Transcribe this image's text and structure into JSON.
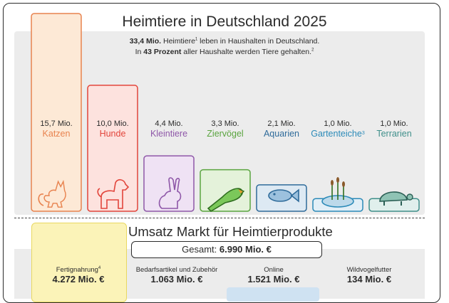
{
  "title": "Heimtiere in Deutschland 2025",
  "subtitle1_value": "33,4 Mio.",
  "subtitle1_text": " Heimtiere",
  "subtitle1_sup": "1",
  "subtitle1_rest": " leben in Haushalten in Deutschland.",
  "subtitle2_pre": "In ",
  "subtitle2_value": "43 Prozent",
  "subtitle2_rest": " aller Haushalte werden Tiere gehalten.",
  "subtitle2_sup": "2",
  "chart_data": {
    "type": "bar",
    "title": "Heimtiere in Deutschland 2025",
    "unit": "Mio.",
    "categories": [
      "Katzen",
      "Hunde",
      "Kleintiere",
      "Ziervögel",
      "Aquarien",
      "Gartenteiche",
      "Terrarien"
    ],
    "category_superscripts": [
      "",
      "",
      "",
      "",
      "",
      "3",
      ""
    ],
    "values": [
      15.7,
      10.0,
      4.4,
      3.3,
      2.1,
      1.0,
      1.0
    ],
    "value_labels": [
      "15,7 Mio.",
      "10,0 Mio.",
      "4,4 Mio.",
      "3,3 Mio.",
      "2,1 Mio.",
      "1,0 Mio.",
      "1,0 Mio."
    ],
    "colors": [
      "#e8834f",
      "#e2453b",
      "#8e57a8",
      "#5aa43f",
      "#2f6b9a",
      "#2b8ab8",
      "#3f8f8a"
    ],
    "fills": [
      "#fde9d6",
      "#fde2de",
      "#efe2f4",
      "#e4f2da",
      "#dde9f3",
      "#e2eff7",
      "#e0efec"
    ],
    "icons": [
      "cat-icon",
      "dog-icon",
      "rabbit-icon",
      "parrot-icon",
      "fish-icon",
      "pond-icon",
      "turtle-icon"
    ],
    "grid": false,
    "legend": "none"
  },
  "market": {
    "title": "Umsatz Markt für Heimtierprodukte",
    "total_label": "Gesamt: ",
    "total_value": "6.990 Mio. €",
    "items": [
      {
        "label": "Fertignahrung",
        "sup": "4",
        "value": "4.272 Mio. €"
      },
      {
        "label": "Bedarfsartikel und Zubehör",
        "sup": "",
        "value": "1.063 Mio. €"
      },
      {
        "label": "Online",
        "sup": "",
        "value": "1.521 Mio. €"
      },
      {
        "label": "Wildvogelfutter",
        "sup": "",
        "value": "134 Mio. €"
      }
    ]
  }
}
